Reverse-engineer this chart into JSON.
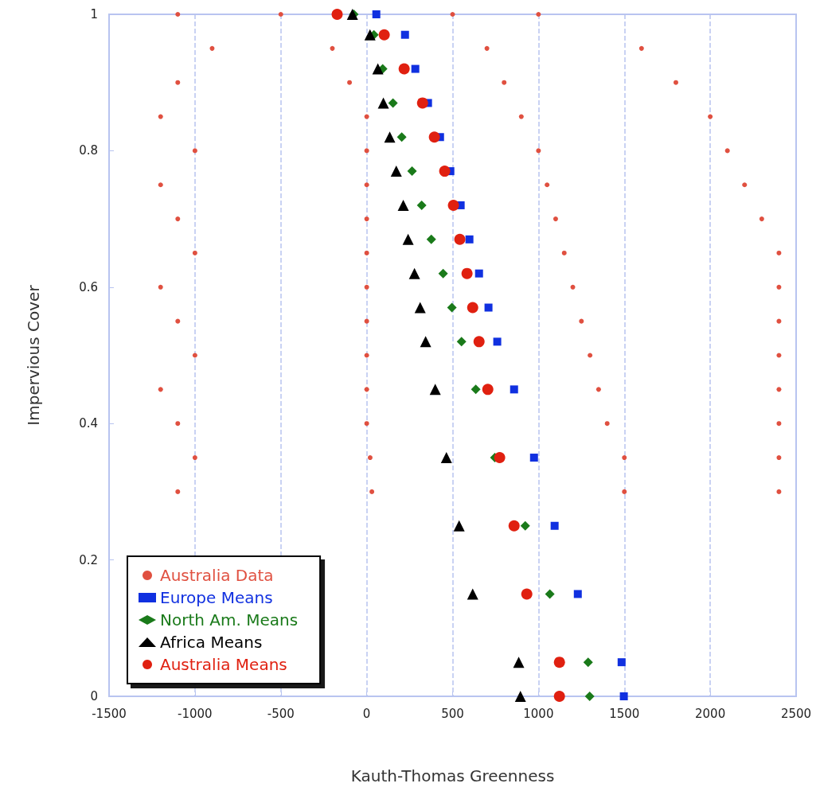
{
  "chart_data": {
    "type": "scatter",
    "xlabel": "Kauth-Thomas Greenness",
    "ylabel": "Impervious Cover",
    "xlim": [
      -1500,
      2500
    ],
    "xticks": [
      -1500,
      -1000,
      -500,
      0,
      500,
      1000,
      1500,
      2000,
      2500
    ],
    "ylim": [
      0,
      1
    ],
    "yticks": [
      0,
      0.2,
      0.4,
      0.6,
      0.8,
      1
    ],
    "grid": "x",
    "legend": "bottom left",
    "series": [
      {
        "name": "Australia Data",
        "color": "#e05040",
        "marker": "circle",
        "x": [
          -1100,
          -500,
          500,
          1000,
          -900,
          -200,
          700,
          1600,
          -1100,
          -100,
          800,
          1800,
          -1200,
          0,
          900,
          2000,
          -1000,
          0,
          1000,
          2100,
          -1200,
          0,
          1050,
          2200,
          -1100,
          0,
          1100,
          2300,
          -1000,
          0,
          1150,
          2400,
          -1200,
          0,
          1200,
          2400,
          -1100,
          0,
          1250,
          2400,
          -1000,
          0,
          1300,
          2400,
          -1200,
          0,
          1350,
          2400,
          -1100,
          0,
          1400,
          2400,
          -1000,
          20,
          1500,
          2400,
          -1100,
          30,
          1500,
          2400
        ],
        "values": [
          1,
          1,
          1,
          1,
          0.95,
          0.95,
          0.95,
          0.95,
          0.9,
          0.9,
          0.9,
          0.9,
          0.85,
          0.85,
          0.85,
          0.85,
          0.8,
          0.8,
          0.8,
          0.8,
          0.75,
          0.75,
          0.75,
          0.75,
          0.7,
          0.7,
          0.7,
          0.7,
          0.65,
          0.65,
          0.65,
          0.65,
          0.6,
          0.6,
          0.6,
          0.6,
          0.55,
          0.55,
          0.55,
          0.55,
          0.5,
          0.5,
          0.5,
          0.5,
          0.45,
          0.45,
          0.45,
          0.45,
          0.4,
          0.4,
          0.4,
          0.4,
          0.35,
          0.35,
          0.35,
          0.35,
          0.3,
          0.3,
          0.3,
          0.3
        ]
      },
      {
        "name": "Europe Means",
        "color": "#1030e0",
        "marker": "square",
        "x": [
          56,
          223,
          283,
          357,
          427,
          487,
          547,
          598,
          654,
          709,
          760,
          858,
          974,
          1094,
          1229,
          1484,
          1497
        ],
        "values": [
          1,
          0.97,
          0.92,
          0.87,
          0.82,
          0.77,
          0.72,
          0.67,
          0.62,
          0.57,
          0.52,
          0.45,
          0.35,
          0.25,
          0.15,
          0.05,
          0
        ]
      },
      {
        "name": "North Am. Means",
        "color": "#1a7a1a",
        "marker": "diamond",
        "x": [
          -75,
          42,
          93,
          153,
          204,
          264,
          320,
          376,
          445,
          496,
          552,
          635,
          746,
          923,
          1066,
          1289,
          1298
        ],
        "values": [
          1,
          0.97,
          0.92,
          0.87,
          0.82,
          0.77,
          0.72,
          0.67,
          0.62,
          0.57,
          0.52,
          0.45,
          0.35,
          0.25,
          0.15,
          0.05,
          0
        ]
      },
      {
        "name": "Africa Means",
        "color": "#000000",
        "marker": "triangle",
        "x": [
          -83,
          19,
          65,
          97,
          134,
          172,
          213,
          241,
          278,
          311,
          343,
          399,
          464,
          538,
          617,
          885,
          895
        ],
        "values": [
          1,
          0.97,
          0.92,
          0.87,
          0.82,
          0.77,
          0.72,
          0.67,
          0.62,
          0.57,
          0.52,
          0.45,
          0.35,
          0.25,
          0.15,
          0.05,
          0
        ]
      },
      {
        "name": "Australia Means",
        "color": "#e02010",
        "marker": "circle",
        "x": [
          -172,
          102,
          218,
          325,
          394,
          454,
          505,
          542,
          584,
          617,
          654,
          705,
          774,
          858,
          932,
          1122,
          1122
        ],
        "values": [
          1,
          0.97,
          0.92,
          0.87,
          0.82,
          0.77,
          0.72,
          0.67,
          0.62,
          0.57,
          0.52,
          0.45,
          0.35,
          0.25,
          0.15,
          0.05,
          0
        ]
      }
    ]
  }
}
